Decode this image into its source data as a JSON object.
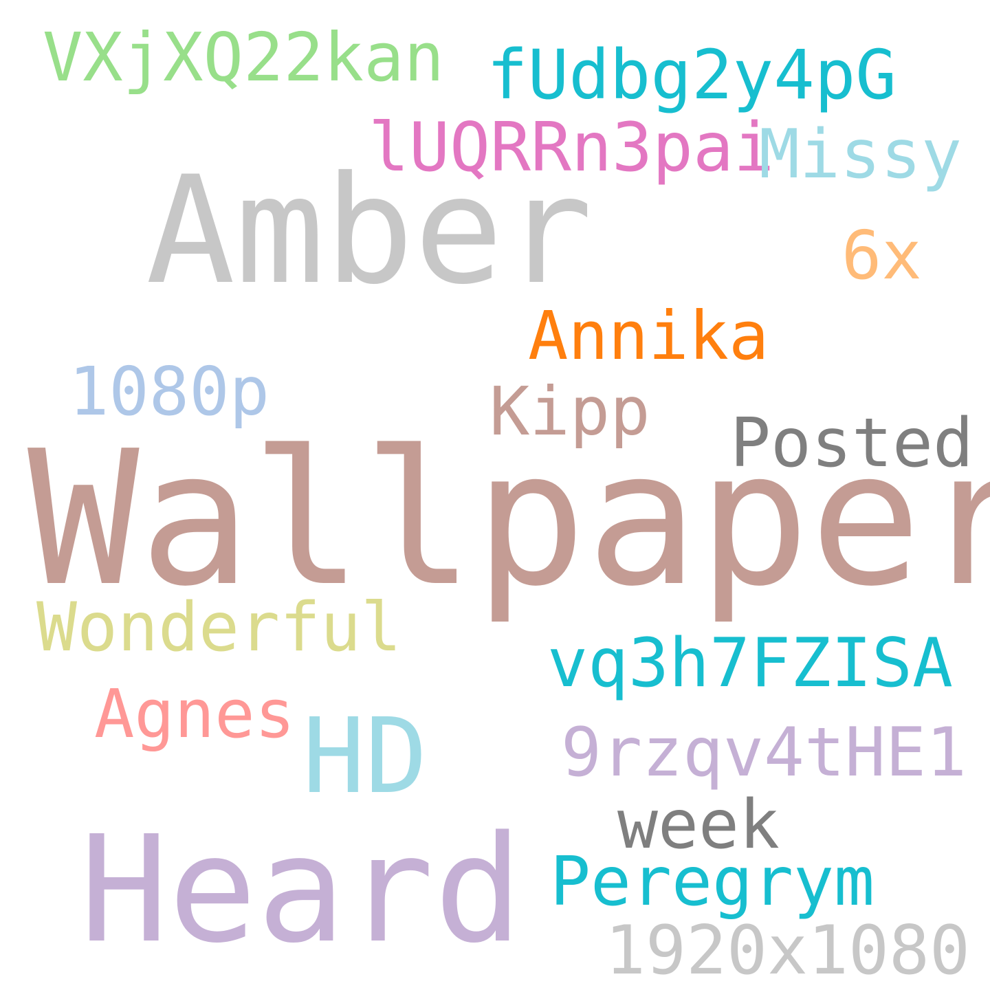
{
  "words": [
    {
      "id": "vxjxq22kan",
      "text": "VXjXQ22kan",
      "color": "#98df8a"
    },
    {
      "id": "fudbg2y4pg",
      "text": "fUdbg2y4pG",
      "color": "#17becf"
    },
    {
      "id": "luqrrn3pai",
      "text": "lUQRRn3pai",
      "color": "#e377c2"
    },
    {
      "id": "missy",
      "text": "Missy",
      "color": "#9edae5"
    },
    {
      "id": "amber",
      "text": "Amber",
      "color": "#c7c7c7"
    },
    {
      "id": "6x",
      "text": "6x",
      "color": "#ffbb78"
    },
    {
      "id": "annika",
      "text": "Annika",
      "color": "#ff7f0e"
    },
    {
      "id": "1080p",
      "text": "1080p",
      "color": "#aec7e8"
    },
    {
      "id": "kipp",
      "text": "Kipp",
      "color": "#c49c94"
    },
    {
      "id": "posted",
      "text": "Posted",
      "color": "#7f7f7f"
    },
    {
      "id": "wallpaper",
      "text": "Wallpaper",
      "color": "#c49c94"
    },
    {
      "id": "wonderful",
      "text": "Wonderful",
      "color": "#dbdb8d"
    },
    {
      "id": "vq3h7fzisa",
      "text": "vq3h7FZISA",
      "color": "#17becf"
    },
    {
      "id": "agnes",
      "text": "Agnes",
      "color": "#ff9896"
    },
    {
      "id": "hd",
      "text": "HD",
      "color": "#9edae5"
    },
    {
      "id": "9rzqv4the1",
      "text": "9rzqv4tHE1",
      "color": "#c5b0d5"
    },
    {
      "id": "week",
      "text": "week",
      "color": "#7f7f7f"
    },
    {
      "id": "heard",
      "text": "Heard",
      "color": "#c5b0d5"
    },
    {
      "id": "peregrym",
      "text": "Peregrym",
      "color": "#17becf"
    },
    {
      "id": "1920x1080",
      "text": "1920x1080",
      "color": "#c7c7c7"
    }
  ]
}
